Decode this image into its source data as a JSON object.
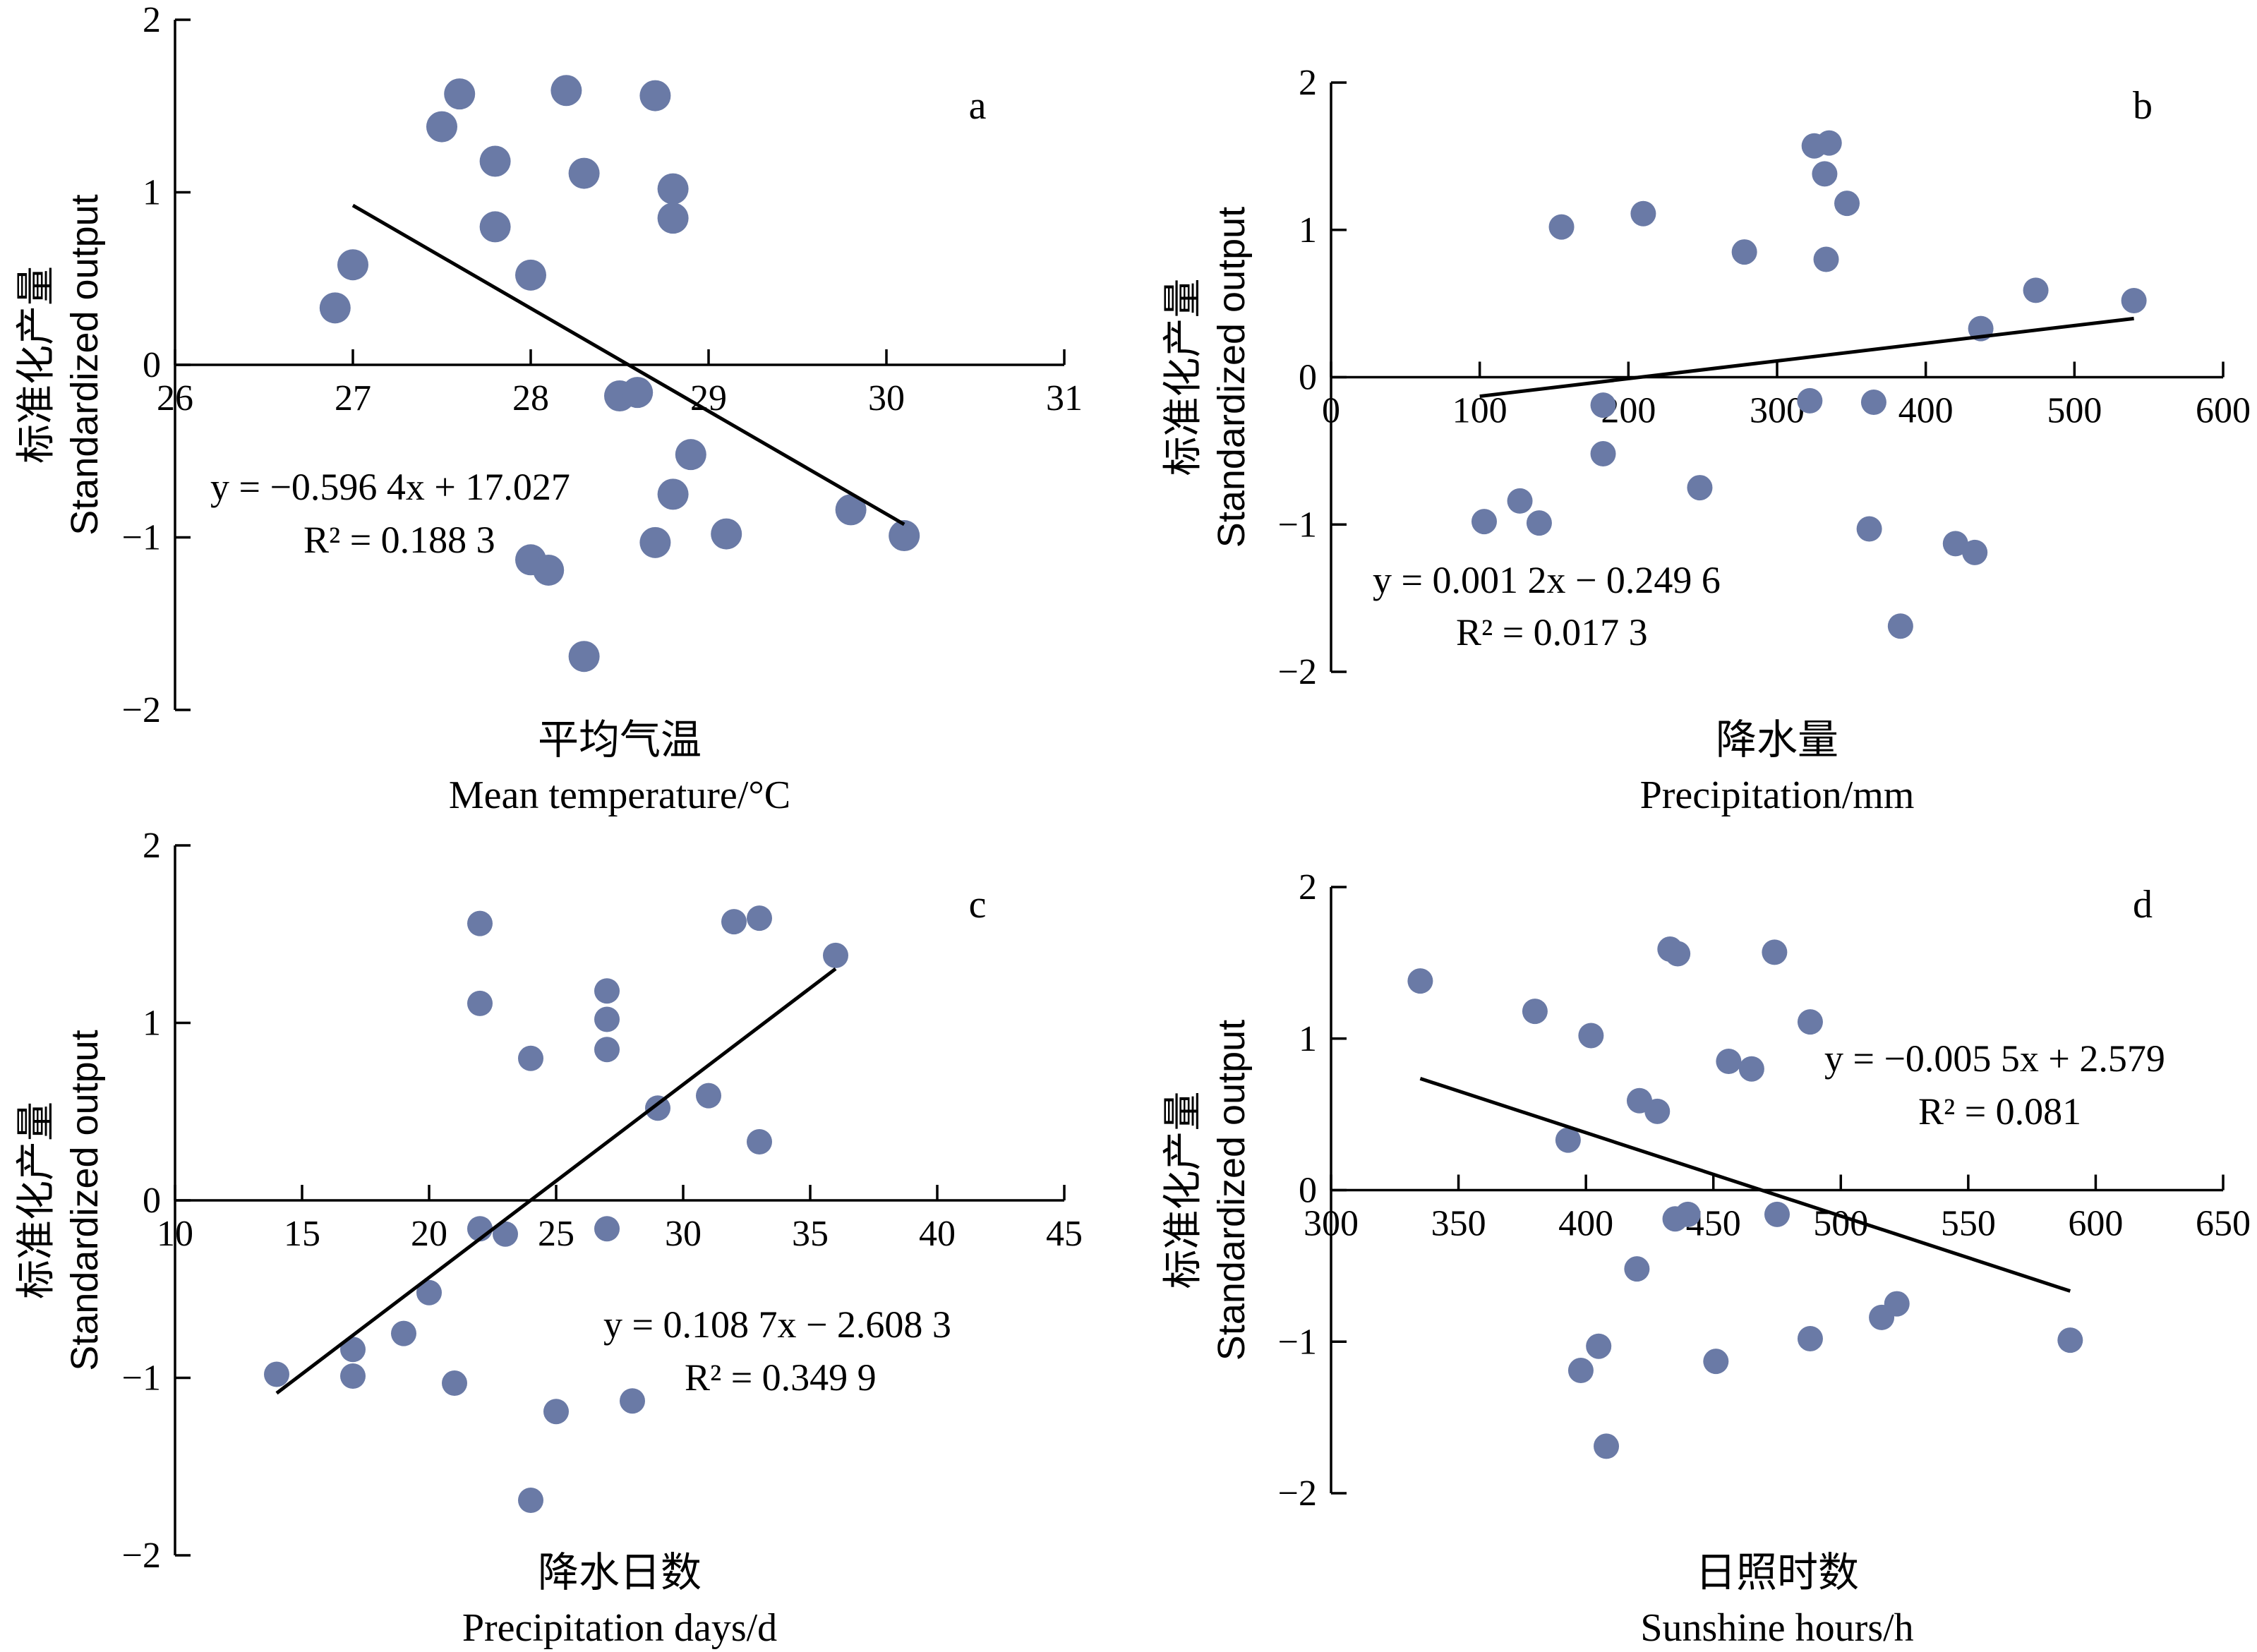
{
  "chart_data": [
    {
      "panel": "a",
      "type": "scatter",
      "ylabel_cn": "标准化产量",
      "ylabel_en": "Standardized output",
      "xlabel_cn": "平均气温",
      "xlabel_en": "Mean temperature/°C",
      "xlim": [
        26,
        31
      ],
      "ylim": [
        -2,
        2
      ],
      "xticks": [
        26,
        27,
        28,
        29,
        30,
        31
      ],
      "yticks": [
        -2,
        -1,
        0,
        1,
        2
      ],
      "marker_color": "#6a7aa6",
      "points": [
        [
          26.9,
          0.33
        ],
        [
          27.0,
          0.58
        ],
        [
          27.5,
          1.38
        ],
        [
          27.6,
          1.57
        ],
        [
          27.8,
          1.18
        ],
        [
          27.8,
          0.8
        ],
        [
          28.0,
          0.52
        ],
        [
          28.0,
          -1.13
        ],
        [
          28.1,
          -1.19
        ],
        [
          28.2,
          1.59
        ],
        [
          28.3,
          1.11
        ],
        [
          28.3,
          -1.69
        ],
        [
          28.5,
          -0.18
        ],
        [
          28.6,
          -0.16
        ],
        [
          28.7,
          1.56
        ],
        [
          28.7,
          -1.03
        ],
        [
          28.8,
          1.02
        ],
        [
          28.8,
          0.85
        ],
        [
          28.8,
          -0.75
        ],
        [
          28.9,
          -0.52
        ],
        [
          29.1,
          -0.98
        ],
        [
          29.8,
          -0.84
        ],
        [
          30.1,
          -0.99
        ]
      ],
      "fit": {
        "x": [
          27.0,
          30.1
        ],
        "slope": -0.5964,
        "intercept": 17.027
      },
      "equation": "y = −0.596 4x + 17.027",
      "r2": "R² = 0.188 3"
    },
    {
      "panel": "b",
      "type": "scatter",
      "ylabel_cn": "标准化产量",
      "ylabel_en": "Standardized output",
      "xlabel_cn": "降水量",
      "xlabel_en": "Precipitation/mm",
      "xlim": [
        0,
        600
      ],
      "ylim": [
        -2,
        2
      ],
      "xticks": [
        0,
        100,
        200,
        300,
        400,
        500,
        600
      ],
      "yticks": [
        -2,
        -1,
        0,
        1,
        2
      ],
      "marker_color": "#6a7aa6",
      "points": [
        [
          103,
          -0.98
        ],
        [
          127,
          -0.84
        ],
        [
          140,
          -0.99
        ],
        [
          155,
          1.02
        ],
        [
          183,
          -0.19
        ],
        [
          183,
          -0.52
        ],
        [
          210,
          1.11
        ],
        [
          248,
          -0.75
        ],
        [
          278,
          0.85
        ],
        [
          322,
          -0.16
        ],
        [
          325,
          1.57
        ],
        [
          332,
          1.38
        ],
        [
          333,
          0.8
        ],
        [
          335,
          1.59
        ],
        [
          347,
          1.18
        ],
        [
          362,
          -1.03
        ],
        [
          365,
          -0.17
        ],
        [
          383,
          -1.69
        ],
        [
          420,
          -1.13
        ],
        [
          433,
          -1.19
        ],
        [
          437,
          0.33
        ],
        [
          474,
          0.59
        ],
        [
          540,
          0.52
        ]
      ],
      "fit": {
        "x": [
          100,
          540
        ],
        "slope": 0.0012,
        "intercept": -0.2496
      },
      "equation": "y = 0.001 2x − 0.249 6",
      "r2": "R² = 0.017 3"
    },
    {
      "panel": "c",
      "type": "scatter",
      "ylabel_cn": "标准化产量",
      "ylabel_en": "Standardized output",
      "xlabel_cn": "降水日数",
      "xlabel_en": "Precipitation days/d",
      "xlim": [
        10,
        45
      ],
      "ylim": [
        -2,
        2
      ],
      "xticks": [
        10,
        15,
        20,
        25,
        30,
        35,
        40,
        45
      ],
      "yticks": [
        -2,
        -1,
        0,
        1,
        2
      ],
      "marker_color": "#6a7aa6",
      "points": [
        [
          14,
          -0.98
        ],
        [
          17,
          -0.84
        ],
        [
          17,
          -0.99
        ],
        [
          19,
          -0.75
        ],
        [
          20,
          -0.52
        ],
        [
          21,
          -1.03
        ],
        [
          22,
          1.56
        ],
        [
          22,
          1.11
        ],
        [
          22,
          -0.16
        ],
        [
          23,
          -0.19
        ],
        [
          24,
          0.8
        ],
        [
          24,
          -1.69
        ],
        [
          25,
          -1.19
        ],
        [
          27,
          1.18
        ],
        [
          27,
          1.02
        ],
        [
          27,
          0.85
        ],
        [
          27,
          -0.16
        ],
        [
          28,
          -1.13
        ],
        [
          29,
          0.52
        ],
        [
          31,
          0.59
        ],
        [
          32,
          1.57
        ],
        [
          33,
          1.59
        ],
        [
          33,
          0.33
        ],
        [
          36,
          1.38
        ]
      ],
      "fit": {
        "x": [
          14,
          36
        ],
        "slope": 0.1087,
        "intercept": -2.6083
      },
      "equation": "y = 0.108 7x − 2.608 3",
      "r2": "R² = 0.349 9"
    },
    {
      "panel": "d",
      "type": "scatter",
      "ylabel_cn": "标准化产量",
      "ylabel_en": "Standardized output",
      "xlabel_cn": "日照时数",
      "xlabel_en": "Sunshine hours/h",
      "xlim": [
        300,
        650
      ],
      "ylim": [
        -2,
        2
      ],
      "xticks": [
        300,
        350,
        400,
        450,
        500,
        550,
        600,
        650
      ],
      "yticks": [
        -2,
        -1,
        0,
        1,
        2
      ],
      "marker_color": "#6a7aa6",
      "points": [
        [
          335,
          1.38
        ],
        [
          380,
          1.18
        ],
        [
          393,
          0.33
        ],
        [
          398,
          -1.19
        ],
        [
          402,
          1.02
        ],
        [
          405,
          -1.03
        ],
        [
          408,
          -1.69
        ],
        [
          420,
          -0.52
        ],
        [
          421,
          0.59
        ],
        [
          428,
          0.52
        ],
        [
          433,
          1.59
        ],
        [
          435,
          -0.19
        ],
        [
          436,
          1.56
        ],
        [
          440,
          -0.16
        ],
        [
          451,
          -1.13
        ],
        [
          456,
          0.85
        ],
        [
          465,
          0.8
        ],
        [
          474,
          1.57
        ],
        [
          475,
          -0.16
        ],
        [
          488,
          -0.98
        ],
        [
          488,
          1.11
        ],
        [
          516,
          -0.84
        ],
        [
          522,
          -0.75
        ],
        [
          590,
          -0.99
        ]
      ],
      "fit": {
        "x": [
          335,
          590
        ],
        "slope": -0.0055,
        "intercept": 2.579
      },
      "equation": "y = −0.005 5x + 2.579",
      "r2": "R² = 0.081"
    }
  ]
}
